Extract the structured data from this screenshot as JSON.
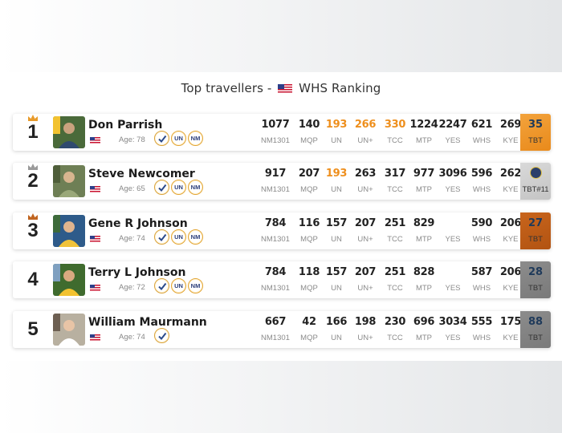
{
  "page": {
    "title_pre": "Top travellers -",
    "title_post": "WHS Ranking"
  },
  "colors": {
    "highlight": "#ee8f1d",
    "gold": "#ee9426",
    "silver": "#cfcfcf",
    "bronze": "#bd5b16",
    "gray": "#838383"
  },
  "columns": [
    "NM1301",
    "MQP",
    "UN",
    "UN+",
    "TCC",
    "MTP",
    "YES",
    "WHS",
    "KYE"
  ],
  "travellers": [
    {
      "rank": "1",
      "name": "Don Parrish",
      "age": "Age: 78",
      "badges": [
        "check-icon",
        "UN",
        "NM"
      ],
      "stats": [
        "1077",
        "140",
        "193",
        "266",
        "330",
        "1224",
        "2247",
        "621",
        "269"
      ],
      "highlight": [
        false,
        false,
        true,
        true,
        true,
        false,
        false,
        false,
        false
      ],
      "tbt_value": "35",
      "tbt_label": "TBT",
      "tbt_style": "gold"
    },
    {
      "rank": "2",
      "name": "Steve Newcomer",
      "age": "Age: 65",
      "badges": [
        "check-icon",
        "UN",
        "NM"
      ],
      "stats": [
        "917",
        "207",
        "193",
        "263",
        "317",
        "977",
        "3096",
        "596",
        "262"
      ],
      "highlight": [
        false,
        false,
        true,
        false,
        false,
        false,
        false,
        false,
        false
      ],
      "tbt_value": "",
      "tbt_label": "TBT#11",
      "tbt_style": "silver"
    },
    {
      "rank": "3",
      "name": "Gene R Johnson",
      "age": "Age: 74",
      "badges": [
        "check-icon",
        "UN",
        "NM"
      ],
      "stats": [
        "784",
        "116",
        "157",
        "207",
        "251",
        "829",
        "",
        "590",
        "206"
      ],
      "highlight": [
        false,
        false,
        false,
        false,
        false,
        false,
        false,
        false,
        false
      ],
      "tbt_value": "27",
      "tbt_label": "TBT",
      "tbt_style": "bronze"
    },
    {
      "rank": "4",
      "name": "Terry L Johnson",
      "age": "Age: 72",
      "badges": [
        "check-icon",
        "UN",
        "NM"
      ],
      "stats": [
        "784",
        "118",
        "157",
        "207",
        "251",
        "828",
        "",
        "587",
        "206"
      ],
      "highlight": [
        false,
        false,
        false,
        false,
        false,
        false,
        false,
        false,
        false
      ],
      "tbt_value": "28",
      "tbt_label": "TBT",
      "tbt_style": "gray"
    },
    {
      "rank": "5",
      "name": "William Maurmann",
      "age": "Age: 74",
      "badges": [
        "check-icon"
      ],
      "stats": [
        "667",
        "42",
        "166",
        "198",
        "230",
        "696",
        "3034",
        "555",
        "175"
      ],
      "highlight": [
        false,
        false,
        false,
        false,
        false,
        false,
        false,
        false,
        false
      ],
      "tbt_value": "88",
      "tbt_label": "TBT",
      "tbt_style": "gray"
    }
  ]
}
